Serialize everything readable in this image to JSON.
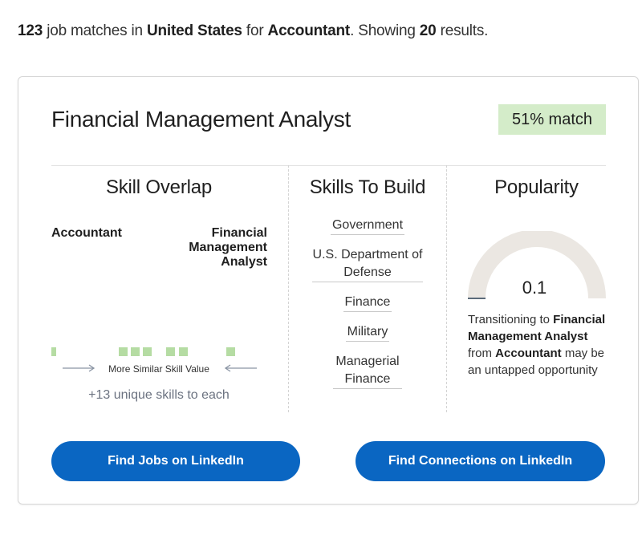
{
  "summary": {
    "count": "123",
    "text1": " job matches in ",
    "location": "United States",
    "text2": " for ",
    "query": "Accountant",
    "text3": ". Showing ",
    "shown": "20",
    "text4": " results."
  },
  "card": {
    "title": "Financial Management Analyst",
    "match": "51% match",
    "skill_overlap": {
      "heading": "Skill Overlap",
      "left_label": "Accountant",
      "right_label_line1": "Financial",
      "right_label_line2": "Management",
      "right_label_line3": "Analyst",
      "similar_label": "More Similar Skill Value",
      "unique_skills": "+13 unique skills to each"
    },
    "skills_to_build": {
      "heading": "Skills To Build",
      "items": [
        "Government",
        "U.S. Department of Defense",
        "Finance",
        "Military",
        "Managerial Finance"
      ]
    },
    "popularity": {
      "heading": "Popularity",
      "value": "0.1",
      "gauge_fraction": 0.1,
      "text_a": "Transitioning to ",
      "text_job": "Financial Management Analyst",
      "text_b": " from ",
      "text_from": "Accountant",
      "text_c": " may be an untapped opportunity"
    },
    "buttons": {
      "jobs": "Find Jobs on LinkedIn",
      "connections": "Find Connections on LinkedIn"
    }
  },
  "colors": {
    "accent": "#0a66c2",
    "match_bg": "#d4ecc9",
    "skill_square": "#b5dca3",
    "gauge_track": "#ebe7e2",
    "gauge_fill": "#5b6b7a"
  }
}
